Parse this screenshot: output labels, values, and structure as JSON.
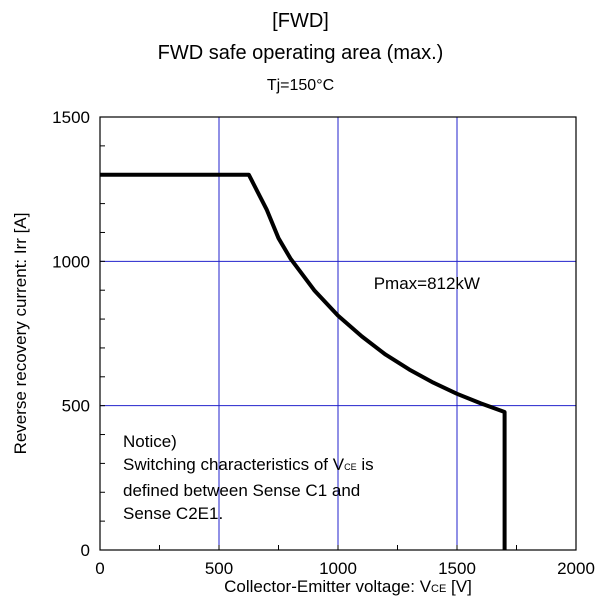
{
  "chart_data": {
    "type": "line",
    "title_tag": "[FWD]",
    "title": "FWD safe operating area (max.)",
    "subtitle": "Tj=150°C",
    "xlabel_main": "Collector-Emitter voltage: V",
    "xlabel_sub": "CE",
    "xlabel_unit": " [V]",
    "ylabel": "Reverse recovery current: Irr [A]",
    "xlim": [
      0,
      2000
    ],
    "ylim": [
      0,
      1500
    ],
    "x_ticks": [
      0,
      500,
      1000,
      1500,
      2000
    ],
    "y_ticks": [
      0,
      500,
      1000,
      1500
    ],
    "x_tick_labels": [
      "0",
      "500",
      "1000",
      "1500",
      "2000"
    ],
    "y_tick_labels": [
      "0",
      "500",
      "1000",
      "1500"
    ],
    "grid": true,
    "grid_color": "#2222cc",
    "line_color": "#000000",
    "series": [
      {
        "x": [
          0,
          625,
          700,
          750,
          800,
          900,
          1000,
          1100,
          1200,
          1300,
          1400,
          1500,
          1600,
          1700,
          1700
        ],
        "y": [
          1300,
          1300,
          1180,
          1080,
          1010,
          900,
          812,
          740,
          677,
          625,
          580,
          541,
          508,
          478,
          0
        ]
      }
    ],
    "annotations": {
      "pmax": "Pmax=812kW",
      "notice_lines": [
        "Notice)",
        "defined between Sense C1 and",
        "Sense C2E1."
      ],
      "notice_line2_pre": "Switching characteristics of V",
      "notice_line2_sub": "CE",
      "notice_line2_post": " is"
    }
  }
}
